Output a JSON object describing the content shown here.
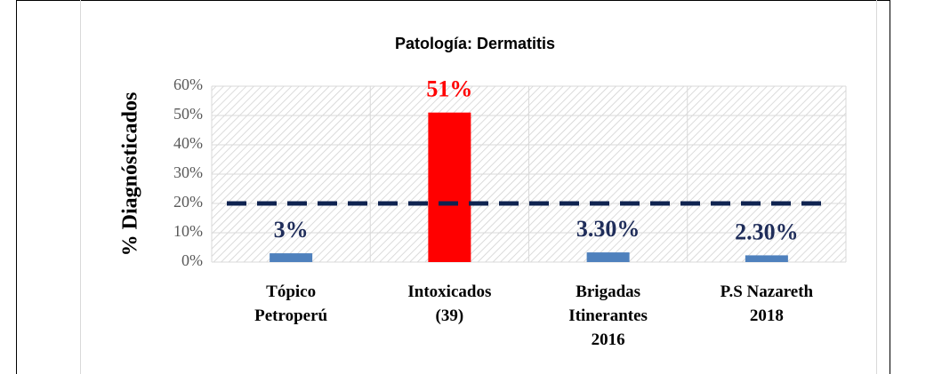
{
  "chart_data": {
    "type": "bar",
    "title": "Patología: Dermatitis",
    "y_label": "% Diagnósticados",
    "categories": [
      "Tópico\nPetroperú",
      "Intoxicados\n(39)",
      "Brigadas\nItinerantes\n2016",
      "P.S Nazareth\n2018"
    ],
    "values": [
      3,
      51,
      3.3,
      2.3
    ],
    "value_labels": [
      "3%",
      "51%",
      "3.30%",
      "2.30%"
    ],
    "colors": [
      "#4f81bd",
      "#ff0000",
      "#4f81bd",
      "#4f81bd"
    ],
    "label_colors": [
      "#1f2d5a",
      "#ff0000",
      "#1f2d5a",
      "#1f2d5a"
    ],
    "reference_line": {
      "value": 20,
      "color": "#0f2350"
    },
    "ylim": [
      0,
      60
    ],
    "yticks": [
      {
        "value": 0,
        "label": "0%"
      },
      {
        "value": 10,
        "label": "10%"
      },
      {
        "value": 20,
        "label": "20%"
      },
      {
        "value": 30,
        "label": "30%"
      },
      {
        "value": 40,
        "label": "40%"
      },
      {
        "value": 50,
        "label": "50%"
      },
      {
        "value": 60,
        "label": "60%"
      }
    ],
    "grid": true
  }
}
